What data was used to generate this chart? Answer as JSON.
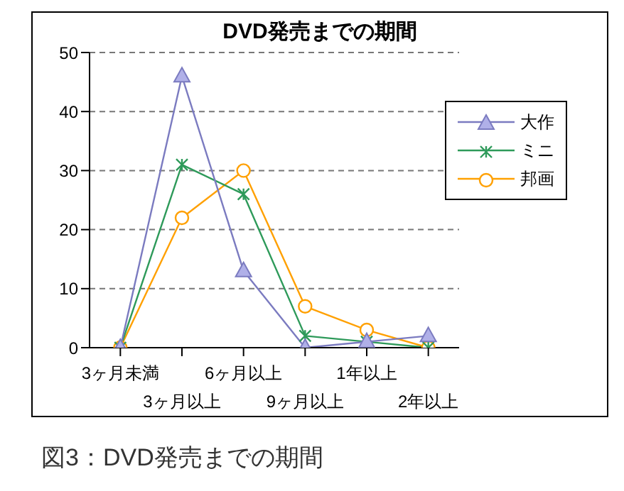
{
  "chart_data": {
    "type": "line",
    "title": "DVD発売までの期間",
    "categories": [
      "3ヶ月未満",
      "3ヶ月以上",
      "6ヶ月以上",
      "9ヶ月以上",
      "1年以上",
      "2年以上"
    ],
    "series": [
      {
        "name": "大作",
        "color": "#7b7bc0",
        "marker": "triangle",
        "values": [
          0,
          46,
          13,
          0,
          1,
          2
        ]
      },
      {
        "name": "ミニ",
        "color": "#2e9a5a",
        "marker": "cross",
        "values": [
          0,
          31,
          26,
          2,
          1,
          0
        ]
      },
      {
        "name": "邦画",
        "color": "#ffa000",
        "marker": "circle",
        "values": [
          0,
          22,
          30,
          7,
          3,
          0
        ]
      }
    ],
    "ylim": [
      0,
      50
    ],
    "yticks": [
      0,
      10,
      20,
      30,
      40,
      50
    ],
    "grid": "y",
    "legend": "top right",
    "line_style": "solid",
    "annotations": [
      "図3：DVD発売までの期間"
    ]
  }
}
